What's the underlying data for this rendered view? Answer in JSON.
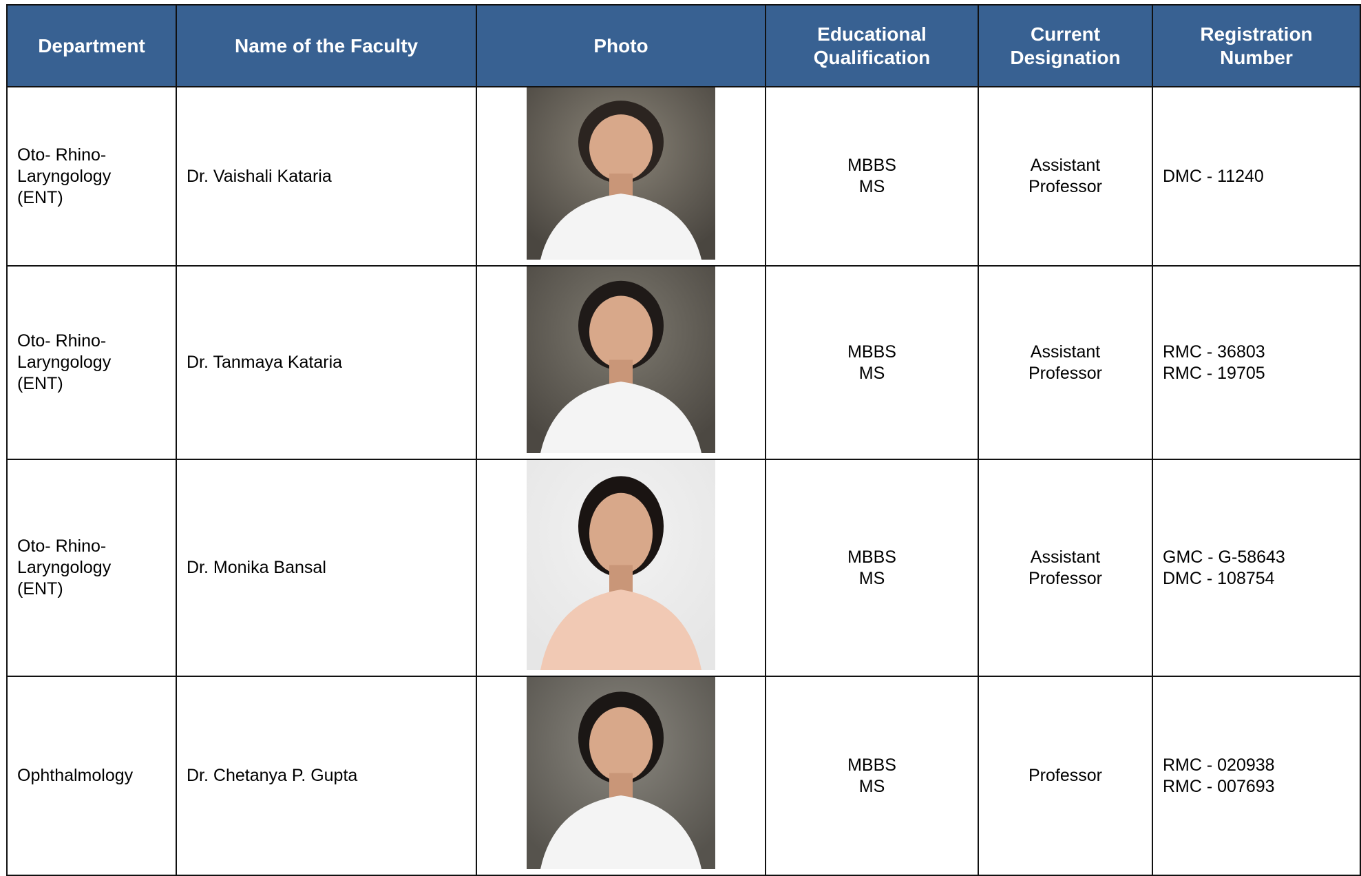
{
  "table": {
    "headers": [
      [
        "Department"
      ],
      [
        "Name of the Faculty"
      ],
      [
        "Photo"
      ],
      [
        "Educational",
        "Qualification"
      ],
      [
        "Current",
        "Designation"
      ],
      [
        "Registration",
        "Number"
      ]
    ],
    "rows": [
      {
        "department": [
          "Oto- Rhino-",
          "Laryngology",
          "(ENT)"
        ],
        "name": "Dr. Vaishali Kataria",
        "qualification": [
          "MBBS",
          "MS"
        ],
        "designation": [
          "Assistant",
          "Professor"
        ],
        "registration": [
          "DMC - 11240"
        ]
      },
      {
        "department": [
          "Oto- Rhino-",
          "Laryngology",
          "(ENT)"
        ],
        "name": "Dr. Tanmaya Kataria",
        "qualification": [
          "MBBS",
          "MS"
        ],
        "designation": [
          "Assistant",
          "Professor"
        ],
        "registration": [
          "RMC - 36803",
          "RMC - 19705"
        ]
      },
      {
        "department": [
          "Oto- Rhino-",
          "Laryngology",
          "(ENT)"
        ],
        "name": "Dr. Monika Bansal",
        "qualification": [
          "MBBS",
          "MS"
        ],
        "designation": [
          "Assistant",
          "Professor"
        ],
        "registration": [
          "GMC - G-58643",
          "DMC - 108754"
        ]
      },
      {
        "department": [
          "Ophthalmology"
        ],
        "name": "Dr. Chetanya P. Gupta",
        "qualification": [
          "MBBS",
          "MS"
        ],
        "designation": [
          "Professor"
        ],
        "registration": [
          "RMC - 020938",
          "RMC - 007693"
        ]
      }
    ]
  }
}
